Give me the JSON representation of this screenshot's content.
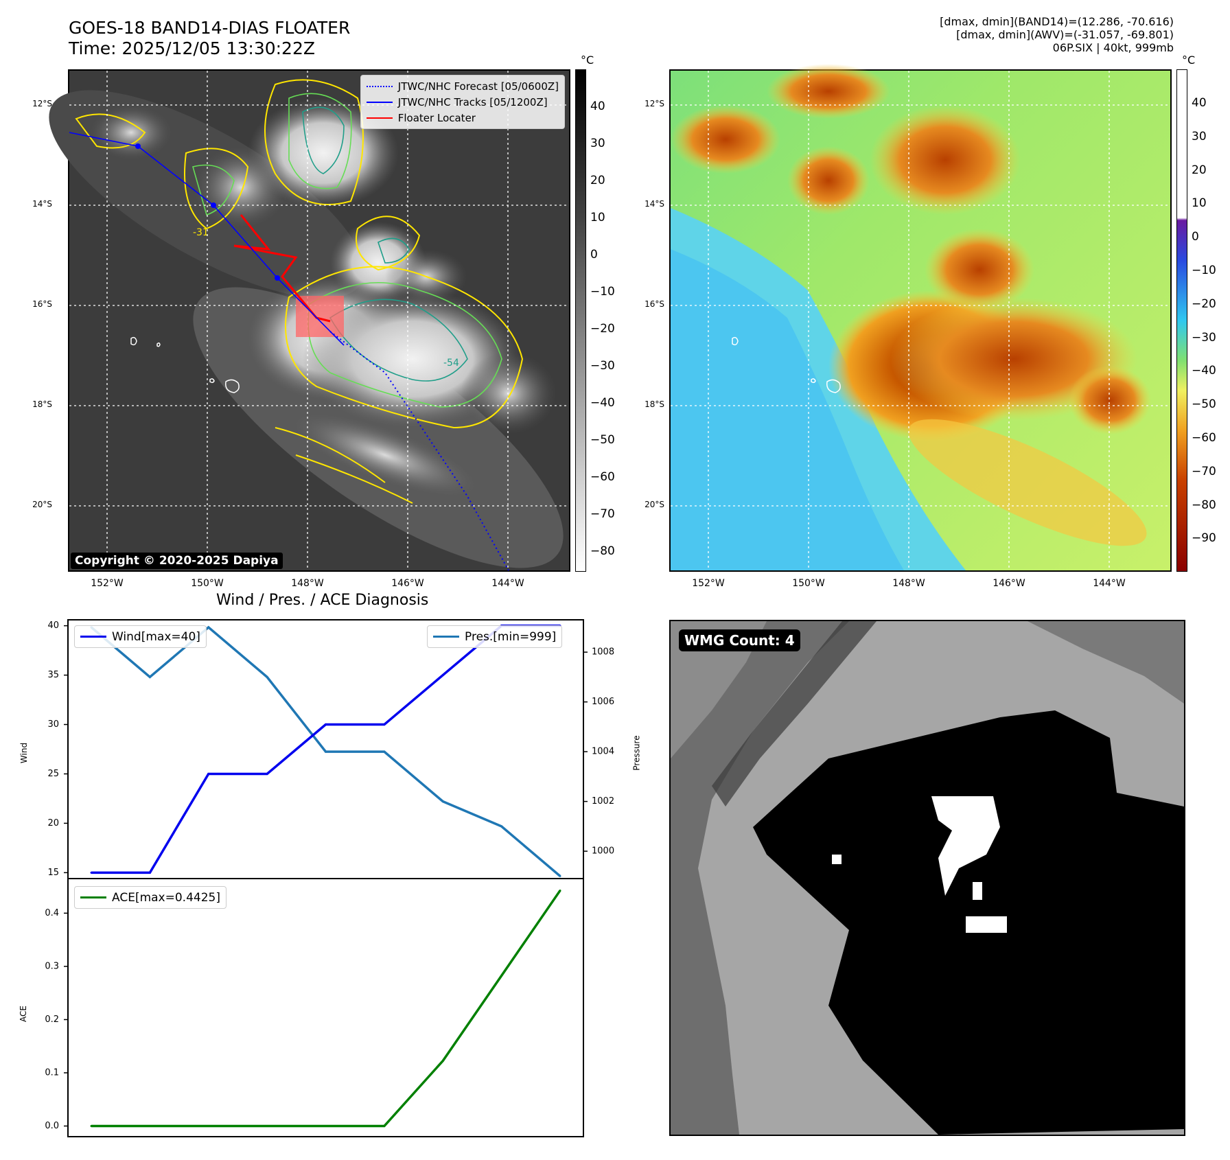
{
  "header": {
    "title_line1": "GOES-18 BAND14-DIAS FLOATER",
    "title_line2": "Time: 2025/12/05 13:30:22Z",
    "stats_line1": "[dmax, dmin](BAND14)=(12.286, -70.616)",
    "stats_line2": "[dmax, dmin](AWV)=(-31.057, -69.801)",
    "stats_line3": "06P.SIX | 40kt, 999mb"
  },
  "map": {
    "lat_labels": [
      "12°S",
      "14°S",
      "16°S",
      "18°S",
      "20°S"
    ],
    "lon_labels": [
      "152°W",
      "150°W",
      "148°W",
      "146°W",
      "144°W"
    ],
    "copyright": "Copyright © 2020-2025 Dapiya",
    "legend": {
      "forecast": "JTWC/NHC Forecast [05/0600Z]",
      "tracks": "JTWC/NHC Tracks [05/1200Z]",
      "locater": "Floater Locater"
    },
    "contour_labels": [
      "-31",
      "-54"
    ],
    "colors": {
      "forecast": "#0000ff",
      "tracks": "#0000ff",
      "locater": "#ff0000",
      "contour_yellow": "#ffe600",
      "contour_green": "#66dd55",
      "contour_teal": "#1f9e89"
    }
  },
  "colorbar_left": {
    "unit": "°C",
    "ticks": [
      "40",
      "30",
      "20",
      "10",
      "0",
      "−10",
      "−20",
      "−30",
      "−40",
      "−50",
      "−60",
      "−70",
      "−80"
    ]
  },
  "colorbar_right": {
    "unit": "°C",
    "ticks": [
      "40",
      "30",
      "20",
      "10",
      "0",
      "−10",
      "−20",
      "−30",
      "−40",
      "−50",
      "−60",
      "−70",
      "−80",
      "−90"
    ]
  },
  "diagnosis": {
    "title": "Wind / Pres. / ACE Diagnosis",
    "wind_ylabel": "Wind",
    "pres_ylabel": "Pressure",
    "ace_ylabel": "ACE",
    "wind_ticks": [
      "40",
      "35",
      "30",
      "25",
      "20",
      "15"
    ],
    "pres_ticks": [
      "1008",
      "1006",
      "1004",
      "1002",
      "1000"
    ],
    "ace_ticks": [
      "0.4",
      "0.3",
      "0.2",
      "0.1",
      "0.0"
    ],
    "wind_legend": "Wind[max=40]",
    "pres_legend": "Pres.[min=999]",
    "ace_legend": "ACE[max=0.4425]",
    "colors": {
      "wind": "#0000ee",
      "pres": "#1f77b4",
      "ace": "#008000"
    }
  },
  "wmg": {
    "label": "WMG Count: 4"
  },
  "chart_data": [
    {
      "type": "line",
      "title": "Wind / Pres. / ACE Diagnosis",
      "x": [
        0,
        1,
        2,
        3,
        4,
        5,
        6,
        7,
        8
      ],
      "series": [
        {
          "name": "Wind[max=40]",
          "axis": "left",
          "values": [
            15,
            15,
            25,
            25,
            30,
            30,
            35,
            40,
            40
          ]
        },
        {
          "name": "Pres.[min=999]",
          "axis": "right",
          "values": [
            1009,
            1007,
            1009,
            1007,
            1004,
            1004,
            1002,
            1001,
            999
          ]
        }
      ],
      "ylabel": "Wind",
      "y2label": "Pressure",
      "ylim": [
        14.4,
        40.6
      ],
      "y2lim": [
        998.9,
        1009.3
      ]
    },
    {
      "type": "line",
      "x": [
        0,
        1,
        2,
        3,
        4,
        5,
        6,
        7,
        8
      ],
      "series": [
        {
          "name": "ACE[max=0.4425]",
          "values": [
            0,
            0,
            0,
            0,
            0,
            0,
            0.1225,
            0.2825,
            0.4425
          ]
        }
      ],
      "ylabel": "ACE",
      "ylim": [
        -0.02,
        0.465
      ]
    }
  ]
}
